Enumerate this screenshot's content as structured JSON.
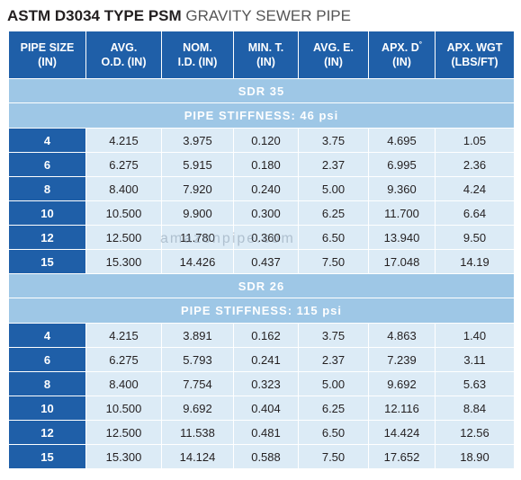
{
  "title": {
    "bold": "ASTM D3034 TYPE PSM",
    "light": " GRAVITY SEWER PIPE"
  },
  "headers": [
    {
      "l1": "PIPE SIZE",
      "l2": "(IN)"
    },
    {
      "l1": "AVG.",
      "l2": "O.D. (IN)"
    },
    {
      "l1": "NOM.",
      "l2": "I.D. (IN)"
    },
    {
      "l1": "MIN. T.",
      "l2": "(IN)"
    },
    {
      "l1": "AVG. E.",
      "l2": "(IN)"
    },
    {
      "l1": "APX. D",
      "sup": "°",
      "l2": "(IN)"
    },
    {
      "l1": "APX. WGT",
      "l2": "(LBS/FT)"
    }
  ],
  "sections": [
    {
      "sdr": "SDR 35",
      "stiffness": "PIPE STIFFNESS: 46 psi",
      "rows": [
        [
          "4",
          "4.215",
          "3.975",
          "0.120",
          "3.75",
          "4.695",
          "1.05"
        ],
        [
          "6",
          "6.275",
          "5.915",
          "0.180",
          "2.37",
          "6.995",
          "2.36"
        ],
        [
          "8",
          "8.400",
          "7.920",
          "0.240",
          "5.00",
          "9.360",
          "4.24"
        ],
        [
          "10",
          "10.500",
          "9.900",
          "0.300",
          "6.25",
          "11.700",
          "6.64"
        ],
        [
          "12",
          "12.500",
          "11.780",
          "0.360",
          "6.50",
          "13.940",
          "9.50"
        ],
        [
          "15",
          "15.300",
          "14.426",
          "0.437",
          "7.50",
          "17.048",
          "14.19"
        ]
      ]
    },
    {
      "sdr": "SDR 26",
      "stiffness": "PIPE STIFFNESS: 115 psi",
      "rows": [
        [
          "4",
          "4.215",
          "3.891",
          "0.162",
          "3.75",
          "4.863",
          "1.40"
        ],
        [
          "6",
          "6.275",
          "5.793",
          "0.241",
          "2.37",
          "7.239",
          "3.11"
        ],
        [
          "8",
          "8.400",
          "7.754",
          "0.323",
          "5.00",
          "9.692",
          "5.63"
        ],
        [
          "10",
          "10.500",
          "9.692",
          "0.404",
          "6.25",
          "12.116",
          "8.84"
        ],
        [
          "12",
          "12.500",
          "11.538",
          "0.481",
          "6.50",
          "14.424",
          "12.56"
        ],
        [
          "15",
          "15.300",
          "14.124",
          "0.588",
          "7.50",
          "17.652",
          "18.90"
        ]
      ]
    }
  ],
  "watermark": "amazonpipe.com",
  "colors": {
    "header": "#1f5fa8",
    "band": "#9ec7e6",
    "cell": "#dcebf6"
  }
}
